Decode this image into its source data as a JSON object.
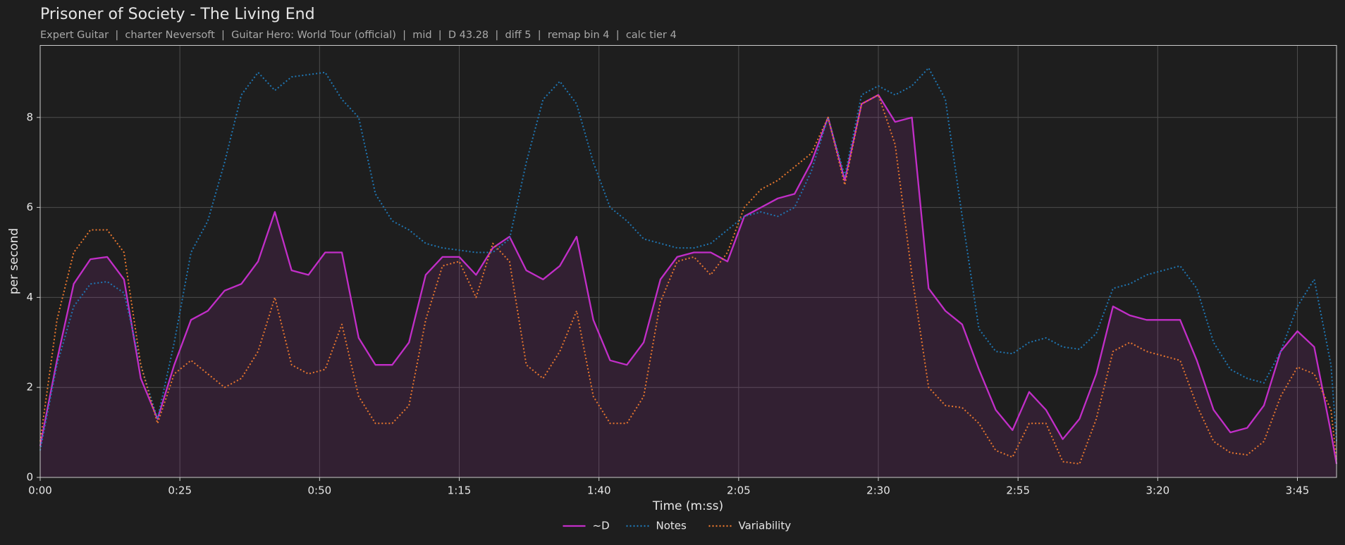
{
  "chart_data": {
    "type": "line",
    "title": "Prisoner of Society - The Living End",
    "subtitle": "Expert Guitar  |  charter Neversoft  |  Guitar Hero: World Tour (official)  |  mid  |  D 43.28  |  diff 5  |  remap bin 4  |  calc tier 4",
    "xlabel": "Time (m:ss)",
    "ylabel": "per second",
    "x": [
      0,
      3,
      6,
      9,
      12,
      15,
      18,
      21,
      24,
      27,
      30,
      33,
      36,
      39,
      42,
      45,
      48,
      51,
      54,
      57,
      60,
      63,
      66,
      69,
      72,
      75,
      78,
      81,
      84,
      87,
      90,
      93,
      96,
      99,
      102,
      105,
      108,
      111,
      114,
      117,
      120,
      123,
      126,
      129,
      132,
      135,
      138,
      141,
      144,
      147,
      150,
      153,
      156,
      159,
      162,
      165,
      168,
      171,
      174,
      177,
      180,
      183,
      186,
      189,
      192,
      195,
      198,
      201,
      204,
      207,
      210,
      213,
      216,
      219,
      222,
      225,
      228,
      231,
      232
    ],
    "series": [
      {
        "name": "~D",
        "color": "#c22ec8",
        "dash": "solid",
        "fill": true,
        "values": [
          0.7,
          2.6,
          4.3,
          4.85,
          4.9,
          4.4,
          2.2,
          1.3,
          2.5,
          3.5,
          3.7,
          4.15,
          4.3,
          4.8,
          5.9,
          4.6,
          4.5,
          5.0,
          5.0,
          3.1,
          2.5,
          2.5,
          3.0,
          4.5,
          4.9,
          4.9,
          4.5,
          5.1,
          5.35,
          4.6,
          4.4,
          4.7,
          5.35,
          3.5,
          2.6,
          2.5,
          3.0,
          4.4,
          4.9,
          5.0,
          5.0,
          4.8,
          5.8,
          6.0,
          6.2,
          6.3,
          7.0,
          8.0,
          6.6,
          8.3,
          8.5,
          7.9,
          8.0,
          4.2,
          3.7,
          3.4,
          2.4,
          1.5,
          1.05,
          1.9,
          1.5,
          0.85,
          1.3,
          2.3,
          3.8,
          3.6,
          3.5,
          3.5,
          3.5,
          2.6,
          1.5,
          1.0,
          1.1,
          1.6,
          2.8,
          3.25,
          2.9,
          1.0,
          0.3
        ]
      },
      {
        "name": "Notes",
        "color": "#1f77b4",
        "dash": "dotted",
        "values": [
          0.6,
          2.5,
          3.8,
          4.3,
          4.35,
          4.1,
          2.5,
          1.3,
          3.0,
          5.0,
          5.7,
          7.0,
          8.5,
          9.0,
          8.6,
          8.9,
          8.95,
          9.0,
          8.4,
          8.0,
          6.3,
          5.7,
          5.5,
          5.2,
          5.1,
          5.05,
          5.0,
          5.0,
          5.3,
          7.0,
          8.4,
          8.8,
          8.3,
          7.0,
          6.0,
          5.7,
          5.3,
          5.2,
          5.1,
          5.1,
          5.2,
          5.5,
          5.8,
          5.9,
          5.8,
          6.0,
          6.8,
          8.0,
          6.7,
          8.5,
          8.7,
          8.5,
          8.7,
          9.1,
          8.4,
          5.8,
          3.3,
          2.8,
          2.75,
          3.0,
          3.1,
          2.9,
          2.85,
          3.2,
          4.2,
          4.3,
          4.5,
          4.6,
          4.7,
          4.2,
          3.0,
          2.4,
          2.2,
          2.1,
          2.8,
          3.8,
          4.4,
          2.5,
          0.8
        ]
      },
      {
        "name": "Variability",
        "color": "#e8772e",
        "dash": "dotted",
        "values": [
          0.8,
          3.5,
          5.0,
          5.5,
          5.5,
          5.0,
          2.5,
          1.2,
          2.3,
          2.6,
          2.3,
          2.0,
          2.2,
          2.8,
          4.0,
          2.5,
          2.3,
          2.4,
          3.4,
          1.8,
          1.2,
          1.2,
          1.6,
          3.5,
          4.7,
          4.8,
          4.0,
          5.2,
          4.8,
          2.5,
          2.2,
          2.8,
          3.7,
          1.8,
          1.2,
          1.2,
          1.8,
          3.9,
          4.8,
          4.9,
          4.5,
          5.0,
          6.0,
          6.4,
          6.6,
          6.9,
          7.2,
          8.0,
          6.5,
          8.3,
          8.5,
          7.4,
          4.5,
          2.0,
          1.6,
          1.55,
          1.2,
          0.6,
          0.45,
          1.2,
          1.2,
          0.35,
          0.3,
          1.3,
          2.8,
          3.0,
          2.8,
          2.7,
          2.6,
          1.6,
          0.8,
          0.55,
          0.5,
          0.8,
          1.8,
          2.45,
          2.3,
          1.5,
          0.4
        ]
      }
    ],
    "xlim": [
      0,
      232
    ],
    "xticks": [
      {
        "value": 0,
        "label": "0:00"
      },
      {
        "value": 25,
        "label": "0:25"
      },
      {
        "value": 50,
        "label": "0:50"
      },
      {
        "value": 75,
        "label": "1:15"
      },
      {
        "value": 100,
        "label": "1:40"
      },
      {
        "value": 125,
        "label": "2:05"
      },
      {
        "value": 150,
        "label": "2:30"
      },
      {
        "value": 175,
        "label": "2:55"
      },
      {
        "value": 200,
        "label": "3:20"
      },
      {
        "value": 225,
        "label": "3:45"
      }
    ],
    "ylim": [
      0,
      9.6
    ],
    "yticks": [
      0,
      2,
      4,
      6,
      8
    ],
    "grid": true,
    "legend": "bottom"
  }
}
